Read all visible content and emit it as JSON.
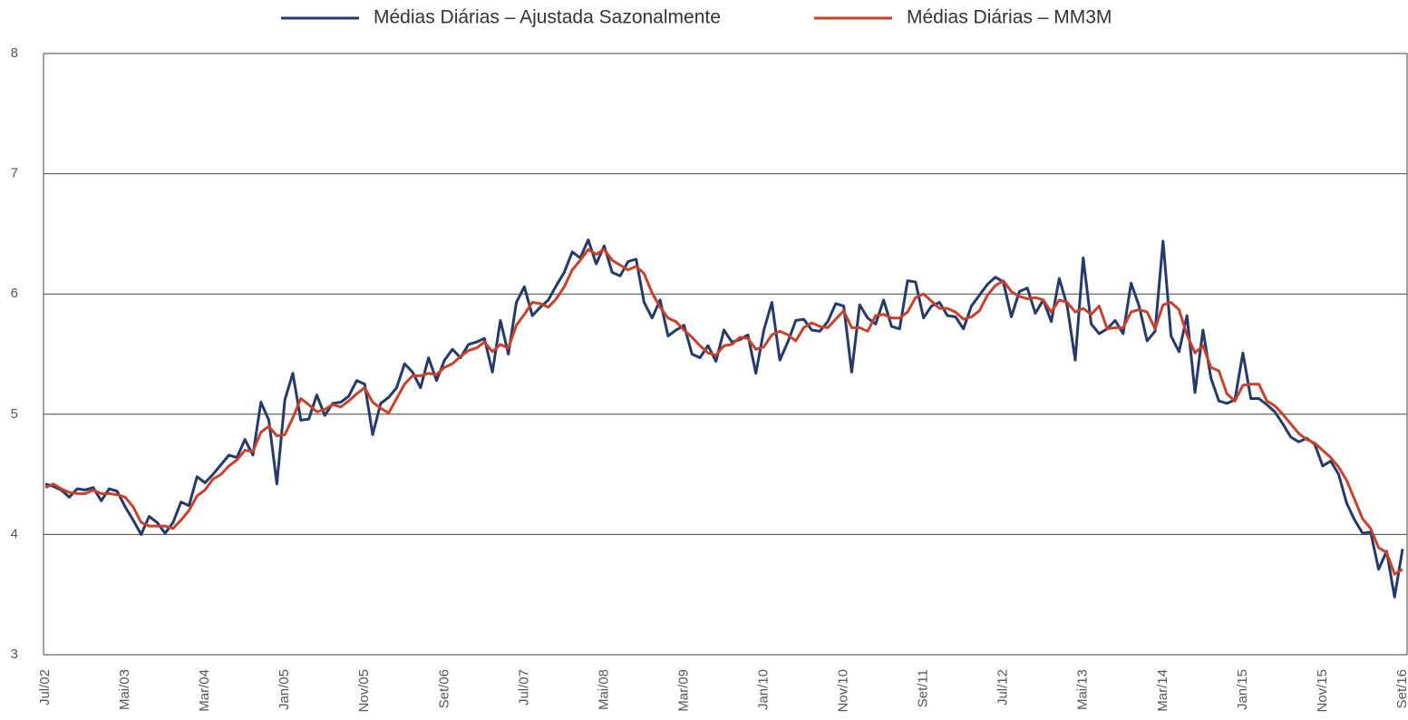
{
  "chart_data": {
    "type": "line",
    "categories": [
      "Jul/02",
      null,
      null,
      null,
      null,
      null,
      null,
      null,
      null,
      null,
      "Mai/03",
      null,
      null,
      null,
      null,
      null,
      null,
      null,
      null,
      null,
      "Mar/04",
      null,
      null,
      null,
      null,
      null,
      null,
      null,
      null,
      null,
      "Jan/05",
      null,
      null,
      null,
      null,
      null,
      null,
      null,
      null,
      null,
      "Nov/05",
      null,
      null,
      null,
      null,
      null,
      null,
      null,
      null,
      null,
      "Set/06",
      null,
      null,
      null,
      null,
      null,
      null,
      null,
      null,
      null,
      "Jul/07",
      null,
      null,
      null,
      null,
      null,
      null,
      null,
      null,
      null,
      "Mai/08",
      null,
      null,
      null,
      null,
      null,
      null,
      null,
      null,
      null,
      "Mar/09",
      null,
      null,
      null,
      null,
      null,
      null,
      null,
      null,
      null,
      "Jan/10",
      null,
      null,
      null,
      null,
      null,
      null,
      null,
      null,
      null,
      "Nov/10",
      null,
      null,
      null,
      null,
      null,
      null,
      null,
      null,
      null,
      "Set/11",
      null,
      null,
      null,
      null,
      null,
      null,
      null,
      null,
      null,
      "Jul/12",
      null,
      null,
      null,
      null,
      null,
      null,
      null,
      null,
      null,
      "Mai/13",
      null,
      null,
      null,
      null,
      null,
      null,
      null,
      null,
      null,
      "Mar/14",
      null,
      null,
      null,
      null,
      null,
      null,
      null,
      null,
      null,
      "Jan/15",
      null,
      null,
      null,
      null,
      null,
      null,
      null,
      null,
      null,
      "Nov/15",
      null,
      null,
      null,
      null,
      null,
      null,
      null,
      null,
      null,
      "Set/16"
    ],
    "series": [
      {
        "name": "Médias Diárias – Ajustada Sazonalmente",
        "color": "#243a6b",
        "values": [
          4.42,
          4.4,
          4.37,
          4.31,
          4.38,
          4.37,
          4.39,
          4.28,
          4.38,
          4.36,
          4.23,
          4.12,
          4.0,
          4.15,
          4.1,
          4.01,
          4.1,
          4.27,
          4.24,
          4.48,
          4.43,
          4.5,
          4.58,
          4.66,
          4.64,
          4.79,
          4.66,
          5.1,
          4.95,
          4.42,
          5.12,
          5.34,
          4.95,
          4.96,
          5.16,
          4.99,
          5.09,
          5.1,
          5.15,
          5.28,
          5.25,
          4.83,
          5.09,
          5.14,
          5.22,
          5.42,
          5.35,
          5.22,
          5.47,
          5.28,
          5.45,
          5.54,
          5.47,
          5.58,
          5.6,
          5.63,
          5.35,
          5.78,
          5.5,
          5.93,
          6.06,
          5.82,
          5.89,
          5.95,
          6.07,
          6.18,
          6.35,
          6.3,
          6.45,
          6.25,
          6.4,
          6.18,
          6.15,
          6.27,
          6.29,
          5.93,
          5.8,
          5.95,
          5.65,
          5.7,
          5.74,
          5.5,
          5.47,
          5.57,
          5.44,
          5.7,
          5.6,
          5.62,
          5.66,
          5.34,
          5.7,
          5.93,
          5.45,
          5.6,
          5.78,
          5.79,
          5.7,
          5.69,
          5.77,
          5.92,
          5.9,
          5.35,
          5.91,
          5.8,
          5.75,
          5.95,
          5.73,
          5.71,
          6.11,
          6.1,
          5.8,
          5.9,
          5.93,
          5.82,
          5.81,
          5.71,
          5.9,
          5.99,
          6.08,
          6.14,
          6.1,
          5.81,
          6.02,
          6.05,
          5.84,
          5.95,
          5.77,
          6.13,
          5.9,
          5.45,
          6.3,
          5.75,
          5.67,
          5.71,
          5.78,
          5.67,
          6.09,
          5.9,
          5.61,
          5.69,
          6.44,
          5.65,
          5.52,
          5.82,
          5.18,
          5.7,
          5.3,
          5.11,
          5.09,
          5.12,
          5.51,
          5.13,
          5.13,
          5.08,
          5.02,
          4.92,
          4.81,
          4.77,
          4.8,
          4.75,
          4.57,
          4.61,
          4.5,
          4.26,
          4.12,
          4.01,
          4.02,
          3.71,
          3.86,
          3.48,
          3.88
        ]
      },
      {
        "name": "Médias Diárias – MM3M",
        "color": "#c8412b",
        "values": [
          4.39,
          4.42,
          4.38,
          4.35,
          4.34,
          4.34,
          4.37,
          4.34,
          4.34,
          4.33,
          4.31,
          4.23,
          4.1,
          4.07,
          4.07,
          4.07,
          4.05,
          4.12,
          4.2,
          4.32,
          4.37,
          4.46,
          4.5,
          4.57,
          4.62,
          4.7,
          4.69,
          4.85,
          4.9,
          4.82,
          4.83,
          4.97,
          5.13,
          5.08,
          5.02,
          5.04,
          5.08,
          5.06,
          5.11,
          5.17,
          5.22,
          5.1,
          5.05,
          5.01,
          5.13,
          5.25,
          5.32,
          5.32,
          5.34,
          5.33,
          5.39,
          5.42,
          5.48,
          5.53,
          5.55,
          5.6,
          5.52,
          5.58,
          5.55,
          5.74,
          5.83,
          5.93,
          5.92,
          5.89,
          5.96,
          6.06,
          6.2,
          6.28,
          6.37,
          6.33,
          6.37,
          6.28,
          6.24,
          6.2,
          6.23,
          6.17,
          6.01,
          5.89,
          5.8,
          5.77,
          5.7,
          5.64,
          5.57,
          5.51,
          5.49,
          5.57,
          5.58,
          5.64,
          5.63,
          5.54,
          5.56,
          5.66,
          5.69,
          5.66,
          5.61,
          5.72,
          5.76,
          5.73,
          5.72,
          5.79,
          5.86,
          5.72,
          5.72,
          5.69,
          5.82,
          5.83,
          5.8,
          5.8,
          5.85,
          5.97,
          6.0,
          5.94,
          5.88,
          5.88,
          5.85,
          5.79,
          5.81,
          5.86,
          5.99,
          6.07,
          6.11,
          6.02,
          5.98,
          5.96,
          5.97,
          5.95,
          5.85,
          5.95,
          5.93,
          5.85,
          5.88,
          5.83,
          5.9,
          5.71,
          5.72,
          5.72,
          5.85,
          5.87,
          5.85,
          5.71,
          5.91,
          5.93,
          5.87,
          5.66,
          5.51,
          5.57,
          5.39,
          5.36,
          5.17,
          5.11,
          5.24,
          5.25,
          5.25,
          5.11,
          5.07,
          5.0,
          4.92,
          4.84,
          4.79,
          4.76,
          4.7,
          4.64,
          4.56,
          4.45,
          4.29,
          4.13,
          4.05,
          3.89,
          3.85,
          3.67,
          3.71
        ]
      }
    ],
    "ylim": [
      3,
      8
    ],
    "yticks": [
      3,
      4,
      5,
      6,
      7,
      8
    ],
    "grid": true,
    "legend": "top"
  }
}
